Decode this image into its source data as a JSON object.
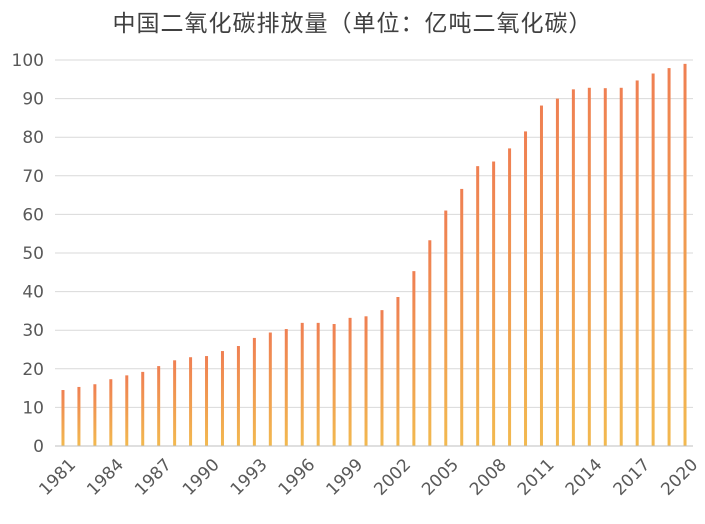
{
  "chart_data": {
    "type": "bar",
    "title": "中国二氧化碳排放量（单位：亿吨二氧化碳）",
    "xlabel": "",
    "ylabel": "",
    "ylim": [
      0,
      100
    ],
    "yticks": [
      0,
      10,
      20,
      30,
      40,
      50,
      60,
      70,
      80,
      90,
      100
    ],
    "x_tick_labels": [
      "1981",
      "1984",
      "1987",
      "1990",
      "1993",
      "1996",
      "1999",
      "2002",
      "2005",
      "2008",
      "2011",
      "2014",
      "2017",
      "2020"
    ],
    "categories": [
      "1981",
      "1982",
      "1983",
      "1984",
      "1985",
      "1986",
      "1987",
      "1988",
      "1989",
      "1990",
      "1991",
      "1992",
      "1993",
      "1994",
      "1995",
      "1996",
      "1997",
      "1998",
      "1999",
      "2000",
      "2001",
      "2002",
      "2003",
      "2004",
      "2005",
      "2006",
      "2007",
      "2008",
      "2009",
      "2010",
      "2011",
      "2012",
      "2013",
      "2014",
      "2015",
      "2016",
      "2017",
      "2018",
      "2019",
      "2020"
    ],
    "values": [
      14.5,
      15.3,
      16.0,
      17.3,
      18.3,
      19.2,
      20.7,
      22.2,
      23.0,
      23.3,
      24.6,
      25.9,
      28.0,
      29.4,
      30.3,
      31.9,
      31.9,
      31.6,
      33.2,
      33.6,
      35.2,
      38.6,
      45.3,
      53.3,
      61.0,
      66.6,
      72.5,
      73.7,
      77.1,
      81.5,
      88.2,
      90.0,
      92.4,
      92.8,
      92.7,
      92.8,
      94.7,
      96.5,
      97.9,
      99.0
    ],
    "colors": {
      "bar_top": "#ef7f52",
      "bar_bottom": "#f2b94f",
      "grid": "#d9d9d9",
      "axis": "#bfbfbf"
    },
    "grid": true,
    "legend": "none"
  }
}
